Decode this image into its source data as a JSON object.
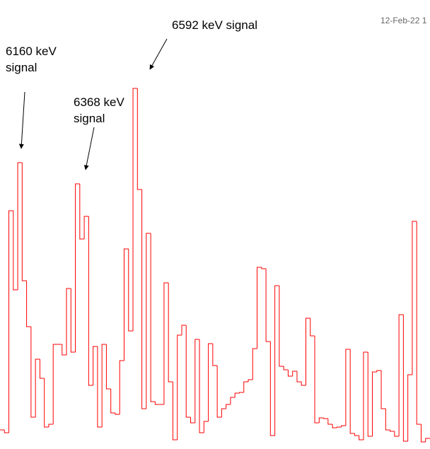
{
  "chart_data": {
    "type": "histogram_step",
    "color": "#ff0000",
    "bins": [
      0,
      1,
      2,
      3,
      4,
      5,
      6,
      7,
      8,
      9,
      10,
      11,
      12,
      13,
      14,
      15,
      16,
      17,
      18,
      19,
      20,
      21,
      22,
      23,
      24,
      25,
      26,
      27,
      28,
      29,
      30,
      31,
      32,
      33,
      34,
      35,
      36,
      37,
      38,
      39,
      40,
      41,
      42,
      43,
      44,
      45,
      46,
      47,
      48,
      49,
      50,
      51,
      52,
      53,
      54,
      55,
      56,
      57,
      58,
      59,
      60,
      61,
      62,
      63,
      64,
      65,
      66,
      67,
      68,
      69,
      70,
      71,
      72,
      73,
      74,
      75,
      76,
      77,
      78,
      79,
      80,
      81,
      82,
      83,
      84,
      85,
      86,
      87,
      88,
      89,
      90,
      91,
      92,
      93,
      94,
      95,
      96,
      97
    ],
    "values": [
      27,
      23,
      337,
      225,
      405,
      238,
      173,
      45,
      127,
      100,
      31,
      35,
      148,
      148,
      133,
      227,
      137,
      375,
      297,
      329,
      90,
      145,
      31,
      148,
      85,
      51,
      49,
      125,
      283,
      167,
      510,
      367,
      57,
      305,
      67,
      63,
      63,
      235,
      95,
      13,
      161,
      175,
      45,
      37,
      155,
      23,
      39,
      149,
      118,
      45,
      57,
      63,
      73,
      79,
      80,
      95,
      98,
      142,
      257,
      255,
      152,
      19,
      231,
      117,
      112,
      103,
      110,
      95,
      90,
      185,
      160,
      37,
      44,
      43,
      35,
      30,
      31,
      33,
      141,
      22,
      19,
      13,
      137,
      18,
      109,
      111,
      57,
      27,
      25,
      18,
      190,
      11,
      105,
      322,
      35,
      10,
      15
    ],
    "xlim": [
      0,
      97
    ],
    "ylim": [
      0,
      635
    ],
    "annotations": [
      "6160 keV",
      "signal",
      "6368 keV",
      "signal",
      "6592 keV signal"
    ],
    "date": "12-Feb-22 1"
  }
}
